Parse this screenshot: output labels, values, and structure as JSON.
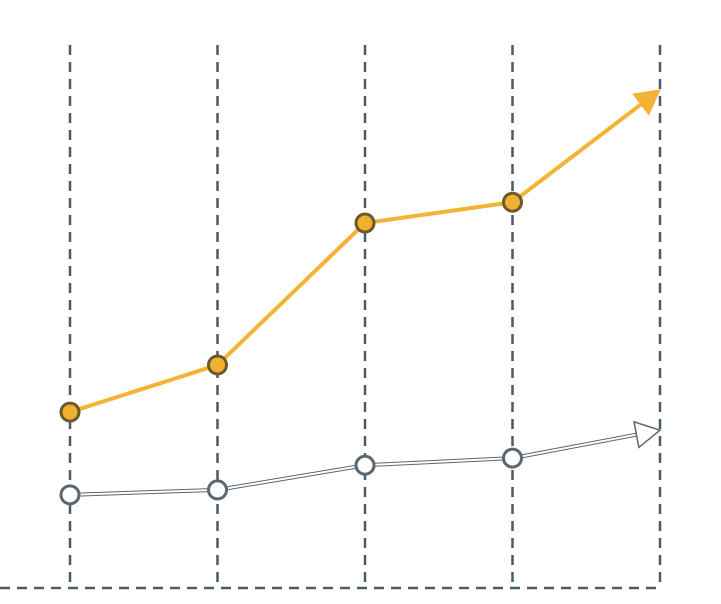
{
  "chart_data": {
    "type": "line",
    "categories": [
      null,
      null,
      null,
      null,
      null
    ],
    "series": [
      {
        "color": "#f5b335",
        "marker_fill": "#f0b030",
        "marker_stroke": "#6b5a2a",
        "hollow": false,
        "values": [
          32.1,
          40.7,
          66.6,
          70.4,
          90.9
        ]
      },
      {
        "color": "#5a6670",
        "marker_fill": "#ffffff",
        "marker_stroke": "#5a6670",
        "hollow": true,
        "values": [
          17,
          17.9,
          22.4,
          23.7,
          28.8
        ]
      }
    ],
    "ylim": [
      0,
      100
    ],
    "grid": true,
    "grid_color": "#4a5a66"
  }
}
